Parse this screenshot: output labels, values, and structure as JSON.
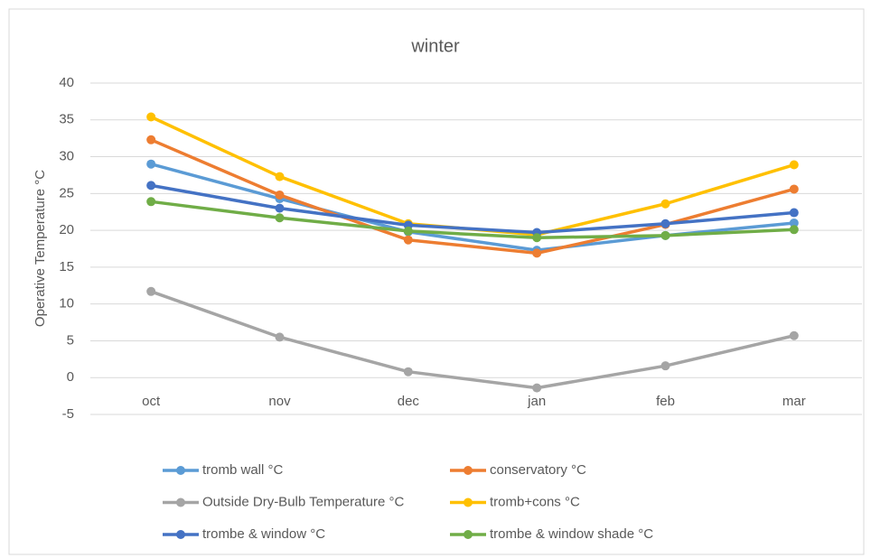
{
  "chart_data": {
    "type": "line",
    "title": "winter",
    "y_label": "Operative Temperature °C",
    "categories": [
      "oct",
      "nov",
      "dec",
      "jan",
      "feb",
      "mar"
    ],
    "ylim": [
      -5,
      40
    ],
    "yticks": [
      -5,
      0,
      5,
      10,
      15,
      20,
      25,
      30,
      35,
      40
    ],
    "grid": true,
    "series": [
      {
        "name": "tromb wall °C",
        "color": "#5b9bd5",
        "values": [
          29,
          24.3,
          19.8,
          17.3,
          19.3,
          21
        ]
      },
      {
        "name": "conservatory °C",
        "color": "#ed7d31",
        "values": [
          32.3,
          24.8,
          18.7,
          16.9,
          20.8,
          25.6
        ]
      },
      {
        "name": "Outside Dry-Bulb Temperature °C",
        "color": "#a5a5a5",
        "values": [
          11.7,
          5.5,
          0.8,
          -1.4,
          1.6,
          5.7
        ]
      },
      {
        "name": "tromb+cons °C",
        "color": "#ffc000",
        "values": [
          35.4,
          27.3,
          20.9,
          19.4,
          23.6,
          28.9
        ]
      },
      {
        "name": "trombe & window °C",
        "color": "#4472c4",
        "values": [
          26.1,
          23,
          20.7,
          19.7,
          20.9,
          22.4
        ]
      },
      {
        "name": "trombe & window shade °C",
        "color": "#70ad47",
        "values": [
          23.9,
          21.7,
          19.9,
          19,
          19.3,
          20.1
        ]
      }
    ]
  }
}
